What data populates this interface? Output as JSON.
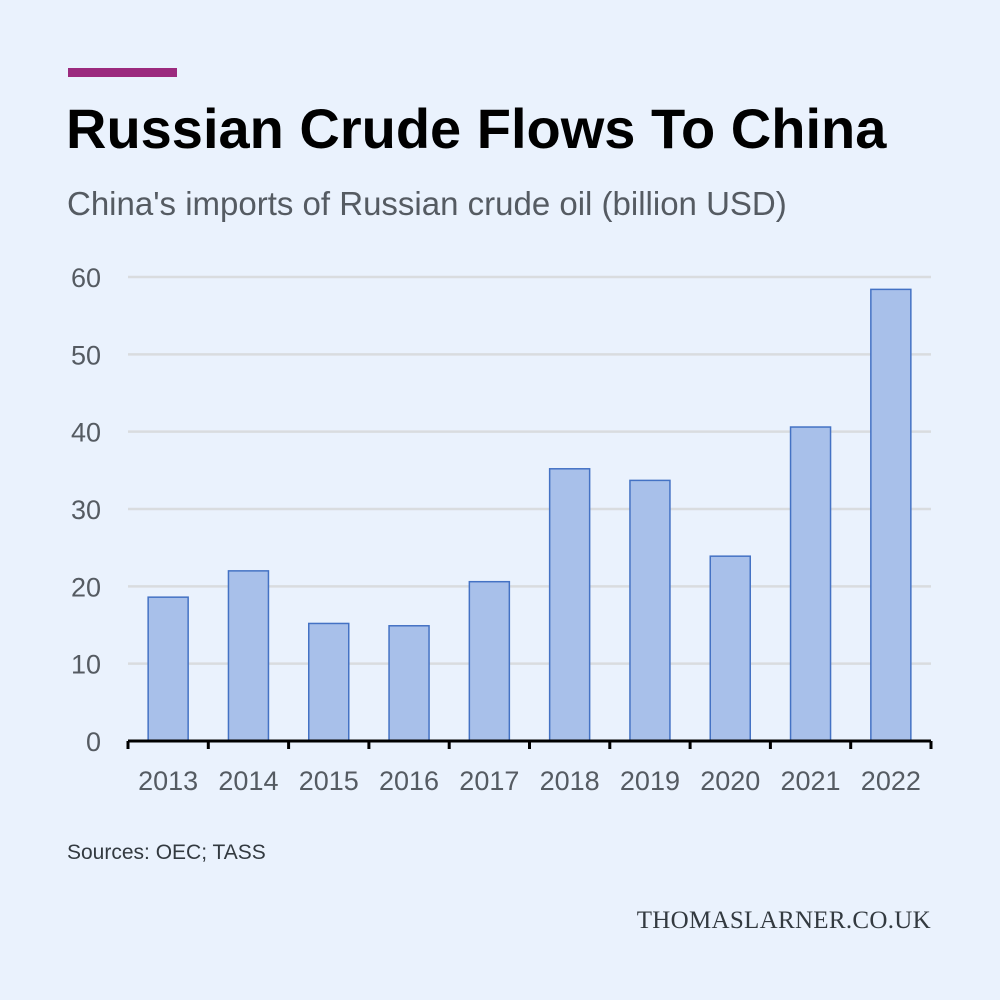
{
  "header": {
    "title": "Russian Crude Flows To China",
    "subtitle": "China's imports of Russian crude oil (billion USD)"
  },
  "footer": {
    "source": "Sources: OEC; TASS",
    "watermark": "THOMASLARNER.CO.UK"
  },
  "colors": {
    "background": "#eaf2fd",
    "accent": "#9b2a7e",
    "bar_fill": "#a8c0ea",
    "bar_stroke": "#4472c4",
    "gridline": "#d9dcdf",
    "axis": "#000000",
    "tick_text": "#555b62"
  },
  "chart_data": {
    "type": "bar",
    "title": "Russian Crude Flows To China",
    "subtitle": "China's imports of Russian crude oil (billion USD)",
    "xlabel": "",
    "ylabel": "",
    "categories": [
      "2013",
      "2014",
      "2015",
      "2016",
      "2017",
      "2018",
      "2019",
      "2020",
      "2021",
      "2022"
    ],
    "values": [
      18.6,
      22.0,
      15.2,
      14.9,
      20.6,
      35.2,
      33.7,
      23.9,
      40.6,
      58.4
    ],
    "ylim": [
      0,
      60
    ],
    "yticks": [
      0,
      10,
      20,
      30,
      40,
      50,
      60
    ],
    "grid": true,
    "legend": "none"
  }
}
